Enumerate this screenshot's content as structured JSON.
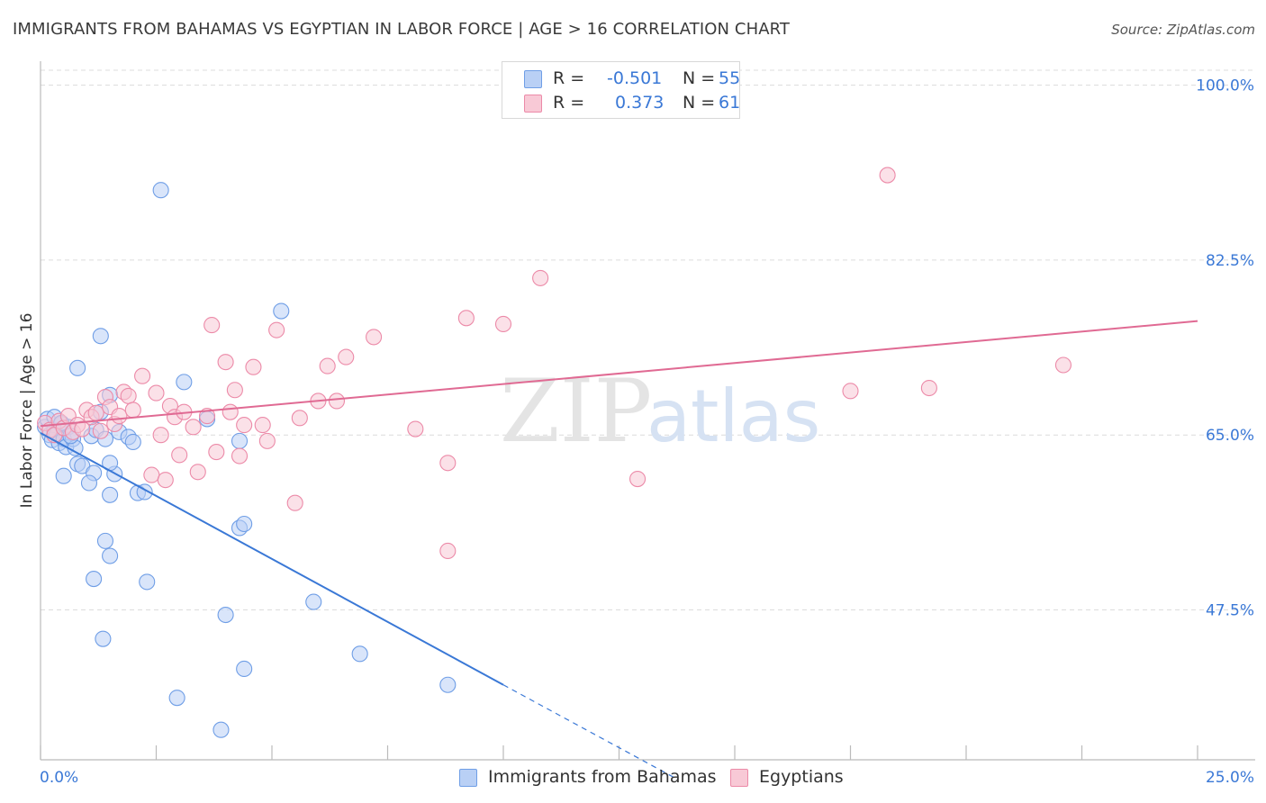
{
  "title": "IMMIGRANTS FROM BAHAMAS VS EGYPTIAN IN LABOR FORCE | AGE > 16 CORRELATION CHART",
  "source": "Source: ZipAtlas.com",
  "watermark": {
    "zip": "ZIP",
    "atlas": "atlas"
  },
  "legend": {
    "rows": [
      {
        "r_label": "R =",
        "r_value": "-0.501",
        "n_label": "N =",
        "n_value": "55",
        "color": "#6f9ee6"
      },
      {
        "r_label": "R =",
        "r_value": "0.373",
        "n_label": "N =",
        "n_value": "61",
        "color": "#ec8aa8"
      }
    ]
  },
  "bottom_legend": [
    "Immigrants from Bahamas",
    "Egyptians"
  ],
  "chart_data": {
    "type": "scatter",
    "title": "IMMIGRANTS FROM BAHAMAS VS EGYPTIAN IN LABOR FORCE | AGE > 16 CORRELATION CHART",
    "xlabel": "",
    "ylabel": "In Labor Force | Age > 16",
    "xlim": [
      0,
      25
    ],
    "ylim": [
      32.5,
      101.5
    ],
    "x_tick_labels": [
      "0.0%",
      "25.0%"
    ],
    "y_ticks": [
      100,
      82.5,
      65,
      47.5
    ],
    "y_tick_labels": [
      "100.0%",
      "82.5%",
      "65.0%",
      "47.5%"
    ],
    "grid": true,
    "legend_position": "top-center",
    "series": [
      {
        "name": "Immigrants from Bahamas",
        "color": "#6f9ee6",
        "fill": "#b9d0f5",
        "trend": {
          "x0": 0.0,
          "y0": 65.2,
          "x1": 10.0,
          "y1": 40.0,
          "dashed_to_x": 13.7,
          "dashed_to_y": 30.7
        },
        "points": [
          [
            0.1,
            65.8
          ],
          [
            0.15,
            66.6
          ],
          [
            0.2,
            65.0
          ],
          [
            0.25,
            64.5
          ],
          [
            0.3,
            65.5
          ],
          [
            0.35,
            65.1
          ],
          [
            0.4,
            64.2
          ],
          [
            0.45,
            66.1
          ],
          [
            0.5,
            64.6
          ],
          [
            0.55,
            63.8
          ],
          [
            0.6,
            65.8
          ],
          [
            0.7,
            64.6
          ],
          [
            0.8,
            62.1
          ],
          [
            0.9,
            61.9
          ],
          [
            0.5,
            60.9
          ],
          [
            0.75,
            63.7
          ],
          [
            0.3,
            66.8
          ],
          [
            0.45,
            66.2
          ],
          [
            1.1,
            64.9
          ],
          [
            1.15,
            61.2
          ],
          [
            1.2,
            65.5
          ],
          [
            1.4,
            64.6
          ],
          [
            1.6,
            61.1
          ],
          [
            1.5,
            62.2
          ],
          [
            1.7,
            65.3
          ],
          [
            0.8,
            71.7
          ],
          [
            1.3,
            67.3
          ],
          [
            1.9,
            64.8
          ],
          [
            2.0,
            64.3
          ],
          [
            1.5,
            59.0
          ],
          [
            2.1,
            59.2
          ],
          [
            2.25,
            59.3
          ],
          [
            2.6,
            89.5
          ],
          [
            1.3,
            74.9
          ],
          [
            1.5,
            69.0
          ],
          [
            3.1,
            70.3
          ],
          [
            3.6,
            66.6
          ],
          [
            4.3,
            64.4
          ],
          [
            4.3,
            55.7
          ],
          [
            4.4,
            56.1
          ],
          [
            5.2,
            77.4
          ],
          [
            1.4,
            54.4
          ],
          [
            1.5,
            52.9
          ],
          [
            1.15,
            50.6
          ],
          [
            2.3,
            50.3
          ],
          [
            4.0,
            47.0
          ],
          [
            5.9,
            48.3
          ],
          [
            1.35,
            44.6
          ],
          [
            4.4,
            41.6
          ],
          [
            6.9,
            43.1
          ],
          [
            2.95,
            38.7
          ],
          [
            3.9,
            35.5
          ],
          [
            8.8,
            40.0
          ],
          [
            1.05,
            60.2
          ],
          [
            0.65,
            64.9
          ]
        ]
      },
      {
        "name": "Egyptians",
        "color": "#ec8aa8",
        "fill": "#f8c9d6",
        "trend": {
          "x0": 0.0,
          "y0": 65.9,
          "x1": 25.0,
          "y1": 76.4
        },
        "points": [
          [
            0.1,
            66.2
          ],
          [
            0.2,
            65.5
          ],
          [
            0.3,
            65.0
          ],
          [
            0.4,
            66.4
          ],
          [
            0.5,
            65.7
          ],
          [
            0.6,
            66.9
          ],
          [
            0.7,
            65.3
          ],
          [
            0.8,
            66.0
          ],
          [
            0.9,
            65.6
          ],
          [
            1.0,
            67.5
          ],
          [
            1.1,
            66.8
          ],
          [
            1.2,
            67.2
          ],
          [
            1.3,
            65.4
          ],
          [
            1.4,
            68.8
          ],
          [
            1.5,
            67.8
          ],
          [
            1.6,
            66.1
          ],
          [
            1.7,
            66.9
          ],
          [
            1.8,
            69.3
          ],
          [
            1.9,
            68.9
          ],
          [
            2.0,
            67.5
          ],
          [
            2.2,
            70.9
          ],
          [
            2.5,
            69.2
          ],
          [
            2.4,
            61.0
          ],
          [
            2.6,
            65.0
          ],
          [
            2.7,
            60.5
          ],
          [
            2.8,
            67.9
          ],
          [
            2.9,
            66.8
          ],
          [
            3.0,
            63.0
          ],
          [
            3.1,
            67.3
          ],
          [
            3.3,
            65.8
          ],
          [
            3.4,
            61.3
          ],
          [
            3.6,
            66.9
          ],
          [
            3.7,
            76.0
          ],
          [
            3.8,
            63.3
          ],
          [
            4.0,
            72.3
          ],
          [
            4.1,
            67.3
          ],
          [
            4.2,
            69.5
          ],
          [
            4.3,
            62.9
          ],
          [
            4.4,
            66.0
          ],
          [
            4.6,
            71.8
          ],
          [
            4.8,
            66.0
          ],
          [
            4.9,
            64.4
          ],
          [
            5.1,
            75.5
          ],
          [
            5.5,
            58.2
          ],
          [
            5.6,
            66.7
          ],
          [
            6.0,
            68.4
          ],
          [
            6.2,
            71.9
          ],
          [
            6.4,
            68.4
          ],
          [
            6.6,
            72.8
          ],
          [
            7.2,
            74.8
          ],
          [
            8.1,
            65.6
          ],
          [
            8.8,
            62.2
          ],
          [
            8.8,
            53.4
          ],
          [
            9.2,
            76.7
          ],
          [
            10.0,
            76.1
          ],
          [
            10.8,
            80.7
          ],
          [
            12.9,
            60.6
          ],
          [
            17.5,
            69.4
          ],
          [
            18.3,
            91.0
          ],
          [
            19.2,
            69.7
          ],
          [
            22.1,
            72.0
          ]
        ]
      }
    ]
  }
}
